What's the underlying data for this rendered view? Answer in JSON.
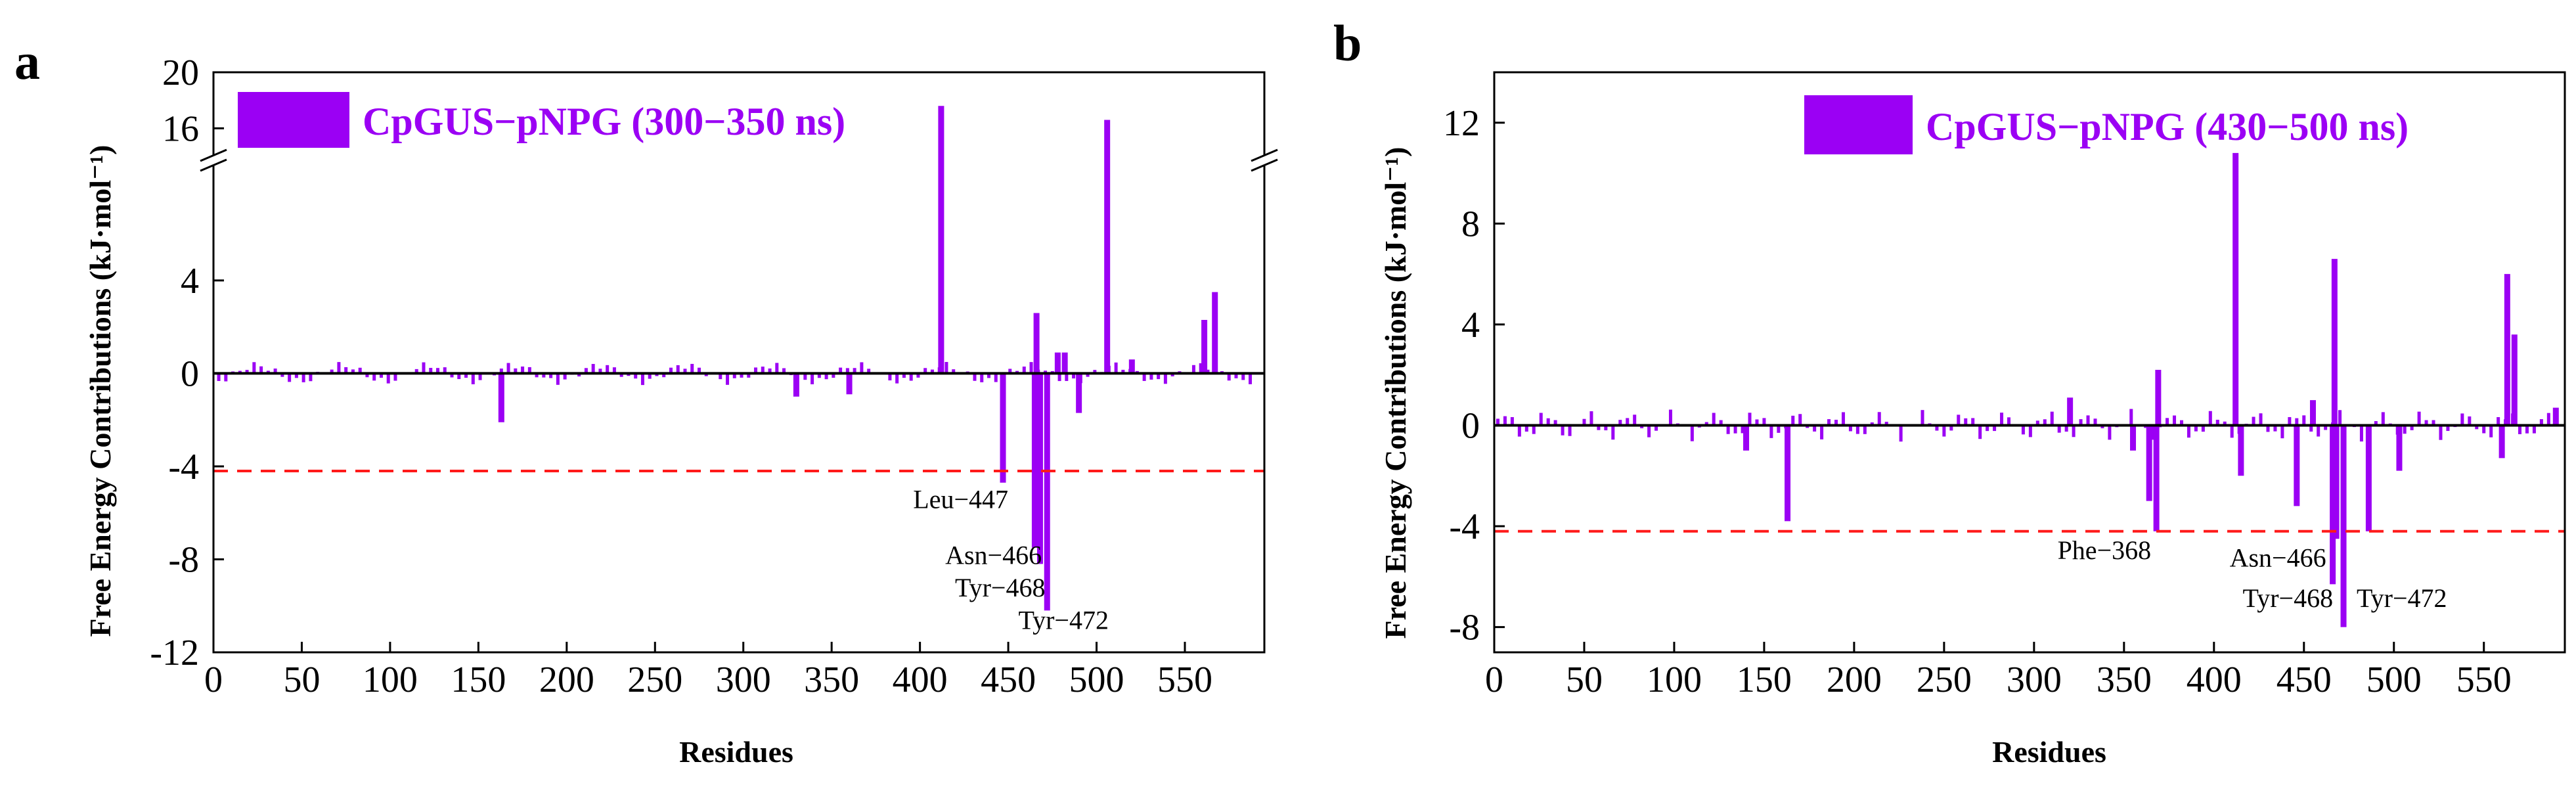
{
  "colors": {
    "bar": "#9b00f4",
    "threshold": "#ff1a1a",
    "axis": "#000000"
  },
  "chart_data": [
    {
      "panel": "a",
      "type": "bar",
      "title": "",
      "xlabel": "Residues",
      "ylabel": "Free Energy Contributions (kJ·mol⁻¹)",
      "legend": "CpGUS−pNPG (300−350 ns)",
      "legend_position": "top-left",
      "xlim": [
        0,
        595
      ],
      "xticks": [
        0,
        50,
        100,
        150,
        200,
        250,
        300,
        350,
        400,
        450,
        500,
        550
      ],
      "ylim": [
        -12,
        20
      ],
      "axis_break": {
        "lower": 9,
        "upper": 14
      },
      "yticks": [
        -12,
        -8,
        -4,
        0,
        4,
        16,
        20
      ],
      "threshold": -4.2,
      "bars": [
        {
          "x": 163,
          "y": -2.1
        },
        {
          "x": 330,
          "y": -1.0
        },
        {
          "x": 360,
          "y": -0.9
        },
        {
          "x": 412,
          "y": 17.6
        },
        {
          "x": 447,
          "y": -4.7
        },
        {
          "x": 465,
          "y": -7.5
        },
        {
          "x": 466,
          "y": 2.6
        },
        {
          "x": 468,
          "y": -8.2
        },
        {
          "x": 472,
          "y": -10.2
        },
        {
          "x": 478,
          "y": 0.9
        },
        {
          "x": 482,
          "y": 0.9
        },
        {
          "x": 490,
          "y": -1.7
        },
        {
          "x": 506,
          "y": 16.6
        },
        {
          "x": 520,
          "y": 0.6
        },
        {
          "x": 561,
          "y": 2.3
        },
        {
          "x": 567,
          "y": 3.5
        }
      ],
      "annotations": [
        {
          "text": "Leu−447",
          "x": 447,
          "y": -5.8
        },
        {
          "text": "Asn−466",
          "x": 466,
          "y": -8.2
        },
        {
          "text": "Tyr−468",
          "x": 468,
          "y": -9.6
        },
        {
          "text": "Tyr−472",
          "x": 472,
          "y": -11.0
        }
      ]
    },
    {
      "panel": "b",
      "type": "bar",
      "title": "",
      "xlabel": "Residues",
      "ylabel": "Free Energy Contributions (kJ·mol⁻¹)",
      "legend": "CpGUS−pNPG (430−500 ns)",
      "legend_position": "top-right",
      "xlim": [
        0,
        595
      ],
      "xticks": [
        0,
        50,
        100,
        150,
        200,
        250,
        300,
        350,
        400,
        450,
        500,
        550
      ],
      "ylim": [
        -9,
        14
      ],
      "yticks": [
        -8,
        -4,
        0,
        4,
        8,
        12
      ],
      "threshold": -4.2,
      "bars": [
        {
          "x": 140,
          "y": -1.0
        },
        {
          "x": 163,
          "y": -3.8
        },
        {
          "x": 320,
          "y": 1.1
        },
        {
          "x": 355,
          "y": -1.0
        },
        {
          "x": 364,
          "y": -3.0
        },
        {
          "x": 368,
          "y": -4.2
        },
        {
          "x": 369,
          "y": 2.2
        },
        {
          "x": 412,
          "y": 10.8
        },
        {
          "x": 415,
          "y": -2.0
        },
        {
          "x": 446,
          "y": -3.2
        },
        {
          "x": 455,
          "y": 1.0
        },
        {
          "x": 466,
          "y": -6.3
        },
        {
          "x": 467,
          "y": 6.6
        },
        {
          "x": 468,
          "y": -4.5
        },
        {
          "x": 472,
          "y": -8.0
        },
        {
          "x": 486,
          "y": -4.2
        },
        {
          "x": 503,
          "y": -1.8
        },
        {
          "x": 560,
          "y": -1.3
        },
        {
          "x": 563,
          "y": 6.0
        },
        {
          "x": 567,
          "y": 3.6
        },
        {
          "x": 590,
          "y": 0.7
        }
      ],
      "annotations": [
        {
          "text": "Phe−368",
          "x": 368,
          "y": -5.3
        },
        {
          "text": "Asn−466",
          "x": 466,
          "y": -5.6
        },
        {
          "text": "Tyr−468",
          "x": 468,
          "y": -7.2
        },
        {
          "text": "Tyr−472",
          "x": 472,
          "y": -7.2
        }
      ]
    }
  ]
}
